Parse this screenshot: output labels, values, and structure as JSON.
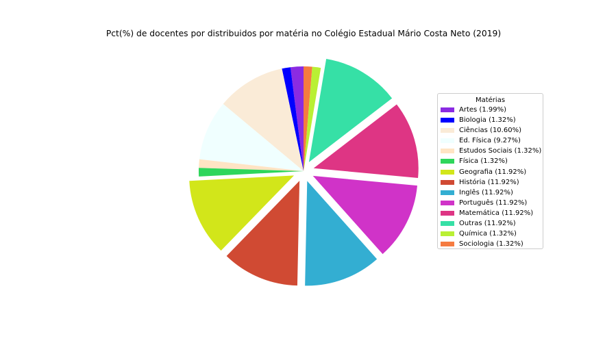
{
  "chart_data": {
    "type": "pie",
    "title": "Pct(%) de docentes por distribuidos por matéria no Colégio Estadual Mário Costa Neto (2019)",
    "legend_title": "Matérias",
    "legend_position": "right",
    "start_angle_deg": 90,
    "direction": "counterclockwise",
    "slices": [
      {
        "label": "Artes (1.99%)",
        "name": "Artes",
        "value": 1.99,
        "color": "#8a2be2",
        "explode": 0
      },
      {
        "label": "Biologia (1.32%)",
        "name": "Biologia",
        "value": 1.32,
        "color": "#0000ff",
        "explode": 0
      },
      {
        "label": "Ciências (10.60%)",
        "name": "Ciências",
        "value": 10.6,
        "color": "#faebd7",
        "explode": 0
      },
      {
        "label": "Ed. Física (9.27%)",
        "name": "Ed. Física",
        "value": 9.27,
        "color": "#f0ffff",
        "explode": 0
      },
      {
        "label": "Estudos Sociais (1.32%)",
        "name": "Estudos Sociais",
        "value": 1.32,
        "color": "#ffe4c4",
        "explode": 0
      },
      {
        "label": "Física (1.32%)",
        "name": "Física",
        "value": 1.32,
        "color": "#2ed65b",
        "explode": 0
      },
      {
        "label": "Geografia (11.92%)",
        "name": "Geografia",
        "value": 11.92,
        "color": "#d2e61a",
        "explode": 0.1
      },
      {
        "label": "História (11.92%)",
        "name": "História",
        "value": 11.92,
        "color": "#d04a33",
        "explode": 0.1
      },
      {
        "label": "Inglês (11.92%)",
        "name": "Inglês",
        "value": 11.92,
        "color": "#33aed2",
        "explode": 0.1
      },
      {
        "label": "Português (11.92%)",
        "name": "Português",
        "value": 11.92,
        "color": "#d033c8",
        "explode": 0.1
      },
      {
        "label": "Matemática (11.92%)",
        "name": "Matemática",
        "value": 11.92,
        "color": "#de3584",
        "explode": 0.1
      },
      {
        "label": "Outras (11.92%)",
        "name": "Outras",
        "value": 11.92,
        "color": "#36e0a6",
        "explode": 0.1
      },
      {
        "label": "Química (1.32%)",
        "name": "Química",
        "value": 1.32,
        "color": "#b9f034",
        "explode": 0
      },
      {
        "label": "Sociologia (1.32%)",
        "name": "Sociologia",
        "value": 1.32,
        "color": "#f57b40",
        "explode": 0
      }
    ]
  }
}
